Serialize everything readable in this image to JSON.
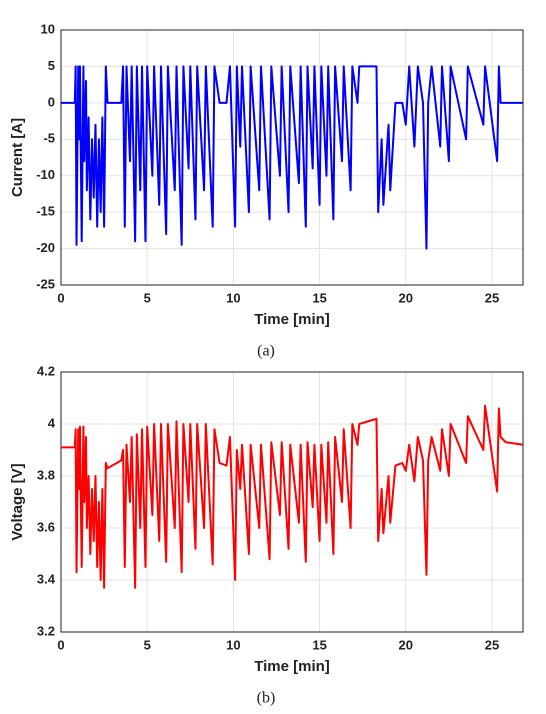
{
  "chart_data": [
    {
      "type": "line",
      "x_label": "Time [min]",
      "y_label": "Current [A]",
      "caption": "(a)",
      "color": "#0000ff",
      "grid": true,
      "xlim": [
        0,
        26.8
      ],
      "xticks": [
        0,
        5,
        10,
        15,
        20,
        25
      ],
      "ylim": [
        -25,
        10
      ],
      "yticks": [
        -25,
        -20,
        -15,
        -10,
        -5,
        0,
        5,
        10
      ],
      "x": [
        0,
        0.8,
        0.85,
        0.9,
        1.0,
        1.05,
        1.1,
        1.2,
        1.3,
        1.35,
        1.45,
        1.5,
        1.6,
        1.7,
        1.8,
        1.9,
        2.0,
        2.1,
        2.2,
        2.3,
        2.4,
        2.5,
        2.6,
        2.7,
        3.5,
        3.6,
        3.7,
        3.8,
        4.0,
        4.1,
        4.3,
        4.4,
        4.6,
        4.7,
        4.9,
        5.0,
        5.3,
        5.4,
        5.7,
        5.8,
        6.1,
        6.2,
        6.6,
        6.7,
        7.0,
        7.1,
        7.4,
        7.5,
        7.8,
        7.9,
        8.3,
        8.4,
        8.8,
        8.9,
        9.2,
        9.6,
        9.8,
        10.1,
        10.2,
        10.4,
        10.5,
        10.9,
        11.0,
        11.5,
        11.6,
        12.1,
        12.2,
        12.7,
        12.8,
        13.2,
        13.3,
        13.8,
        13.9,
        14.2,
        14.3,
        14.6,
        14.7,
        15.0,
        15.1,
        15.4,
        15.5,
        15.8,
        15.9,
        16.3,
        16.4,
        16.8,
        16.9,
        17.2,
        17.3,
        18.3,
        18.4,
        18.6,
        18.7,
        19.0,
        19.1,
        19.4,
        19.8,
        20.0,
        20.2,
        20.5,
        20.7,
        21.0,
        21.2,
        21.3,
        21.5,
        22.0,
        22.1,
        22.5,
        22.6,
        23.5,
        23.6,
        24.5,
        24.6,
        25.3,
        25.4,
        25.5,
        25.8,
        26.8
      ],
      "values": [
        0,
        0,
        5,
        -19.5,
        5,
        -5,
        5,
        -19,
        5,
        -8,
        3,
        -12,
        -2,
        -16,
        -5,
        -13,
        -3,
        -17,
        -5,
        -15,
        -2,
        -17,
        5,
        0,
        0,
        5,
        -17,
        5,
        -8,
        5,
        -19,
        5,
        -12,
        5,
        -19,
        5,
        -10,
        5,
        -14,
        5,
        -18,
        5,
        -12,
        5,
        -19.5,
        5,
        -9,
        5,
        -16,
        5,
        -12,
        5,
        -17,
        5,
        0,
        0,
        5,
        -17,
        5,
        -6,
        5,
        -15,
        5,
        -12,
        5,
        -16,
        5,
        -10,
        5,
        -15,
        5,
        -11,
        5,
        -17,
        5,
        -9,
        5,
        -14,
        5,
        -10,
        5,
        -16,
        5,
        -8,
        5,
        -12,
        5,
        0,
        5,
        5,
        -15,
        -5,
        -14,
        -3,
        -12,
        0,
        0,
        -3,
        5,
        -6,
        5,
        0,
        -20,
        0,
        5,
        -6,
        5,
        -8,
        5,
        -5,
        5,
        -3,
        5,
        -8,
        5,
        0,
        0,
        0
      ]
    },
    {
      "type": "line",
      "x_label": "Time [min]",
      "y_label": "Voltage [V]",
      "caption": "(b)",
      "color": "#ff0000",
      "grid": true,
      "xlim": [
        0,
        26.8
      ],
      "xticks": [
        0,
        5,
        10,
        15,
        20,
        25
      ],
      "ylim": [
        3.2,
        4.2
      ],
      "yticks": [
        3.2,
        3.4,
        3.6,
        3.8,
        4,
        4.2
      ],
      "x": [
        0,
        0.8,
        0.85,
        0.9,
        1.0,
        1.05,
        1.1,
        1.2,
        1.3,
        1.35,
        1.45,
        1.5,
        1.6,
        1.7,
        1.8,
        1.9,
        2.0,
        2.1,
        2.2,
        2.3,
        2.4,
        2.5,
        2.6,
        2.7,
        3.5,
        3.6,
        3.7,
        3.8,
        4.0,
        4.1,
        4.3,
        4.4,
        4.6,
        4.7,
        4.9,
        5.0,
        5.3,
        5.4,
        5.7,
        5.8,
        6.1,
        6.2,
        6.6,
        6.7,
        7.0,
        7.1,
        7.4,
        7.5,
        7.8,
        7.9,
        8.3,
        8.4,
        8.8,
        8.9,
        9.2,
        9.6,
        9.8,
        10.1,
        10.2,
        10.4,
        10.5,
        10.9,
        11.0,
        11.5,
        11.6,
        12.1,
        12.2,
        12.7,
        12.8,
        13.2,
        13.3,
        13.8,
        13.9,
        14.2,
        14.3,
        14.6,
        14.7,
        15.0,
        15.1,
        15.4,
        15.5,
        15.8,
        15.9,
        16.3,
        16.4,
        16.8,
        16.9,
        17.2,
        17.3,
        18.3,
        18.4,
        18.6,
        18.7,
        19.0,
        19.1,
        19.4,
        19.8,
        20.0,
        20.2,
        20.5,
        20.7,
        21.0,
        21.2,
        21.3,
        21.5,
        22.0,
        22.1,
        22.5,
        22.6,
        23.5,
        23.6,
        24.5,
        24.6,
        25.3,
        25.4,
        25.5,
        25.8,
        26.8
      ],
      "values": [
        3.91,
        3.91,
        3.98,
        3.43,
        3.98,
        3.75,
        3.99,
        3.45,
        3.99,
        3.7,
        3.95,
        3.6,
        3.8,
        3.5,
        3.75,
        3.55,
        3.8,
        3.45,
        3.7,
        3.4,
        3.75,
        3.37,
        3.85,
        3.83,
        3.86,
        3.9,
        3.45,
        3.92,
        3.7,
        3.95,
        3.37,
        3.96,
        3.6,
        3.98,
        3.45,
        3.99,
        3.65,
        4.0,
        3.55,
        4.0,
        3.47,
        4.0,
        3.6,
        4.01,
        3.43,
        4.0,
        3.7,
        4.0,
        3.52,
        4.0,
        3.6,
        4.0,
        3.46,
        3.98,
        3.85,
        3.84,
        3.95,
        3.4,
        3.9,
        3.75,
        3.92,
        3.5,
        3.92,
        3.6,
        3.92,
        3.48,
        3.93,
        3.65,
        3.93,
        3.52,
        3.92,
        3.62,
        3.92,
        3.47,
        3.93,
        3.68,
        3.92,
        3.55,
        3.92,
        3.62,
        3.93,
        3.5,
        3.95,
        3.7,
        3.98,
        3.6,
        4.0,
        3.92,
        4.0,
        4.02,
        3.55,
        3.75,
        3.58,
        3.8,
        3.62,
        3.84,
        3.85,
        3.82,
        3.92,
        3.78,
        3.95,
        3.86,
        3.42,
        3.86,
        3.95,
        3.82,
        3.98,
        3.8,
        4.0,
        3.85,
        4.03,
        3.9,
        4.07,
        3.74,
        4.06,
        3.95,
        3.93,
        3.92
      ]
    }
  ]
}
